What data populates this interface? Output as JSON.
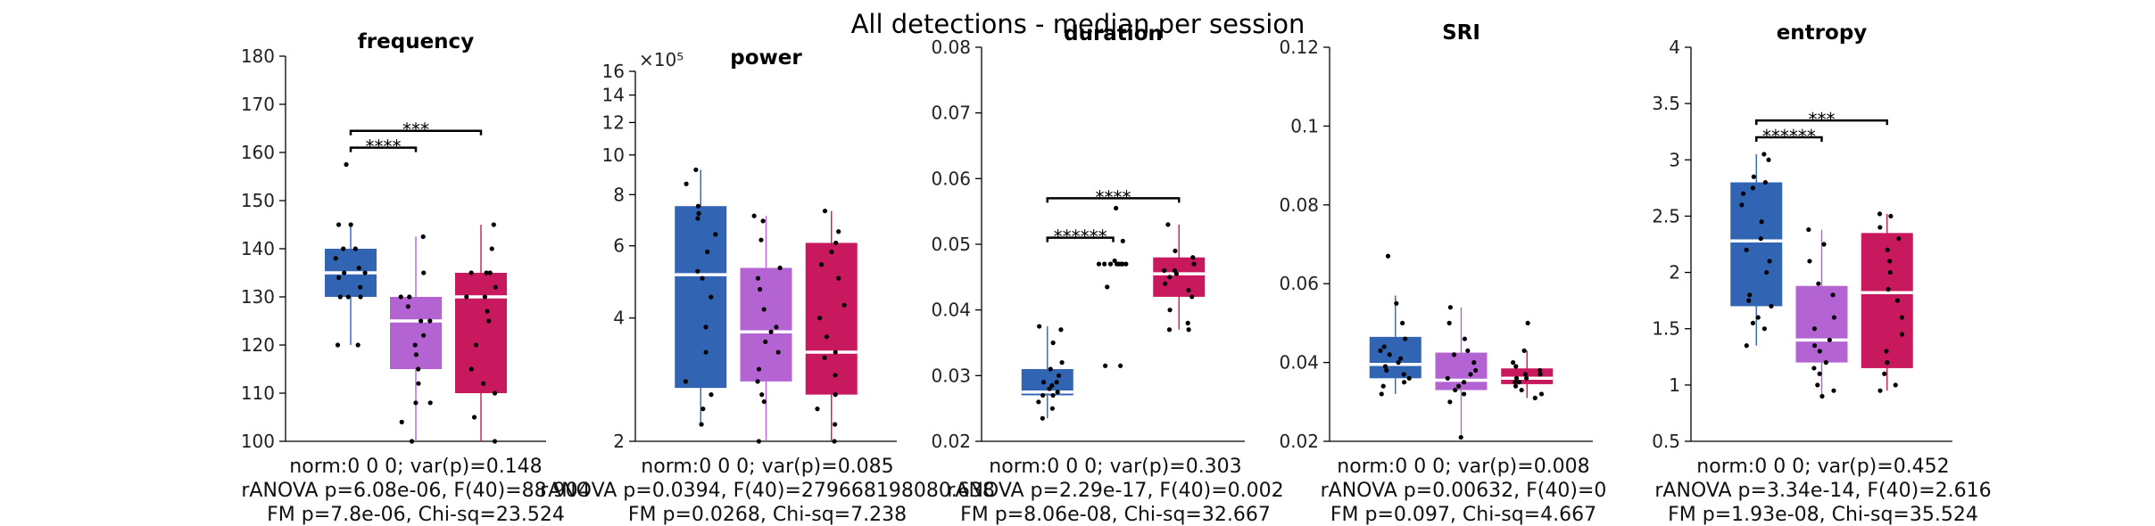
{
  "suptitle": "All detections - median per session",
  "colors": {
    "blue": "#3264b4",
    "violet": "#b464d2",
    "magenta": "#c8195f"
  },
  "chart_data": [
    {
      "type": "box",
      "title": "frequency",
      "scale": "linear",
      "ylim": [
        100,
        180
      ],
      "yticks": [
        100,
        110,
        120,
        130,
        140,
        150,
        160,
        170,
        180
      ],
      "ytick_labels": [
        "100",
        "110",
        "120",
        "130",
        "140",
        "150",
        "160",
        "170",
        "180"
      ],
      "exponent_label": "",
      "groups": [
        {
          "color": "#3264b4",
          "q1": 130,
          "median": 135,
          "q3": 140,
          "whisker_low": 120,
          "whisker_high": 145,
          "points": [
            120,
            120,
            130,
            130,
            130,
            132,
            134,
            135,
            135,
            136,
            138,
            140,
            140,
            145,
            145,
            157.5
          ]
        },
        {
          "color": "#b464d2",
          "q1": 115,
          "median": 125,
          "q3": 130,
          "whisker_low": 100,
          "whisker_high": 142.5,
          "points": [
            100,
            104,
            108,
            108,
            112,
            115,
            118,
            120,
            122,
            125,
            125,
            128,
            130,
            130,
            135,
            142.5
          ]
        },
        {
          "color": "#c8195f",
          "q1": 110,
          "median": 130,
          "q3": 135,
          "whisker_low": 100,
          "whisker_high": 145,
          "points": [
            100,
            105,
            110,
            112,
            115,
            120,
            125,
            127,
            130,
            130,
            132,
            135,
            135,
            135,
            140,
            145
          ]
        }
      ],
      "brackets": [
        {
          "from": 0,
          "to": 1,
          "y": 161,
          "label": "****"
        },
        {
          "from": 0,
          "to": 2,
          "y": 164.5,
          "label": "***"
        }
      ],
      "stats": [
        "norm:0  0  0; var(p)=0.148",
        "rANOVA p=6.08e-06, F(40)=88.904",
        "FM p=7.8e-06, Chi-sq=23.524"
      ]
    },
    {
      "type": "box",
      "title": "power",
      "scale": "log",
      "ylim": [
        2,
        16
      ],
      "yticks": [
        2,
        4,
        6,
        8,
        10,
        12,
        14,
        16
      ],
      "ytick_labels": [
        "2",
        "4",
        "6",
        "8",
        "10",
        "12",
        "14",
        "16"
      ],
      "exponent_label": "×10⁵",
      "groups": [
        {
          "color": "#3264b4",
          "q1": 2.7,
          "median": 5.1,
          "q3": 7.5,
          "whisker_low": 2.2,
          "whisker_high": 9.2,
          "points": [
            2.2,
            2.4,
            2.6,
            2.8,
            3.3,
            3.8,
            4.5,
            5.0,
            5.2,
            5.8,
            6.4,
            7.0,
            7.2,
            7.5,
            8.5,
            9.2
          ]
        },
        {
          "color": "#b464d2",
          "q1": 2.8,
          "median": 3.7,
          "q3": 5.3,
          "whisker_low": 2.0,
          "whisker_high": 7.1,
          "points": [
            2.0,
            2.5,
            2.6,
            2.8,
            3.0,
            3.3,
            3.5,
            3.7,
            3.8,
            4.2,
            4.7,
            5.0,
            5.3,
            6.2,
            6.9,
            7.1
          ]
        },
        {
          "color": "#c8195f",
          "q1": 2.6,
          "median": 3.3,
          "q3": 6.1,
          "whisker_low": 2.0,
          "whisker_high": 7.3,
          "points": [
            2.0,
            2.2,
            2.4,
            2.6,
            2.9,
            3.2,
            3.3,
            3.6,
            4.0,
            4.3,
            5.0,
            5.4,
            5.8,
            6.1,
            6.5,
            7.3
          ]
        }
      ],
      "brackets": [],
      "stats": [
        "norm:0  0  0; var(p)=0.085",
        "rANOVA p=0.0394, F(40)=279668198080.638",
        "FM p=0.0268, Chi-sq=7.238"
      ]
    },
    {
      "type": "box",
      "title": "duration",
      "scale": "linear",
      "ylim": [
        0.02,
        0.08
      ],
      "yticks": [
        0.02,
        0.03,
        0.04,
        0.05,
        0.06,
        0.07,
        0.08
      ],
      "ytick_labels": [
        "0.02",
        "0.03",
        "0.04",
        "0.05",
        "0.06",
        "0.07",
        "0.08"
      ],
      "exponent_label": "",
      "groups": [
        {
          "color": "#3264b4",
          "q1": 0.027,
          "median": 0.0275,
          "q3": 0.031,
          "whisker_low": 0.0235,
          "whisker_high": 0.0375,
          "points": [
            0.0235,
            0.025,
            0.026,
            0.027,
            0.027,
            0.0275,
            0.028,
            0.0285,
            0.029,
            0.029,
            0.03,
            0.031,
            0.032,
            0.035,
            0.037,
            0.0375
          ]
        },
        {
          "color": "#b464d2",
          "q1": 0.047,
          "median": 0.047,
          "q3": 0.047,
          "whisker_low": 0.047,
          "whisker_high": 0.0475,
          "points": [
            0.0315,
            0.0315,
            0.0435,
            0.047,
            0.047,
            0.047,
            0.047,
            0.047,
            0.047,
            0.047,
            0.047,
            0.0475,
            0.0505,
            0.0555
          ]
        },
        {
          "color": "#c8195f",
          "q1": 0.042,
          "median": 0.0455,
          "q3": 0.048,
          "whisker_low": 0.037,
          "whisker_high": 0.053,
          "points": [
            0.037,
            0.037,
            0.038,
            0.04,
            0.042,
            0.043,
            0.044,
            0.045,
            0.0455,
            0.046,
            0.046,
            0.047,
            0.048,
            0.049,
            0.053
          ]
        }
      ],
      "brackets": [
        {
          "from": 0,
          "to": 1,
          "y": 0.051,
          "label": "******"
        },
        {
          "from": 0,
          "to": 2,
          "y": 0.057,
          "label": "****"
        }
      ],
      "stats": [
        "norm:0  0  0; var(p)=0.303",
        "rANOVA p=2.29e-17, F(40)=0.002",
        "FM p=8.06e-08, Chi-sq=32.667"
      ]
    },
    {
      "type": "box",
      "title": "SRI",
      "scale": "linear",
      "ylim": [
        0.02,
        0.12
      ],
      "yticks": [
        0.02,
        0.04,
        0.06,
        0.08,
        0.1,
        0.12
      ],
      "ytick_labels": [
        "0.02",
        "0.04",
        "0.06",
        "0.08",
        "0.1",
        "0.12"
      ],
      "exponent_label": "",
      "groups": [
        {
          "color": "#3264b4",
          "q1": 0.036,
          "median": 0.0395,
          "q3": 0.0465,
          "whisker_low": 0.032,
          "whisker_high": 0.057,
          "points": [
            0.032,
            0.034,
            0.035,
            0.036,
            0.037,
            0.038,
            0.039,
            0.04,
            0.041,
            0.042,
            0.043,
            0.044,
            0.046,
            0.05,
            0.055,
            0.067
          ]
        },
        {
          "color": "#b464d2",
          "q1": 0.033,
          "median": 0.0355,
          "q3": 0.0425,
          "whisker_low": 0.021,
          "whisker_high": 0.054,
          "points": [
            0.021,
            0.03,
            0.032,
            0.033,
            0.034,
            0.035,
            0.036,
            0.037,
            0.038,
            0.04,
            0.042,
            0.043,
            0.046,
            0.05,
            0.054
          ]
        },
        {
          "color": "#c8195f",
          "q1": 0.0345,
          "median": 0.036,
          "q3": 0.0385,
          "whisker_low": 0.031,
          "whisker_high": 0.043,
          "points": [
            0.031,
            0.032,
            0.033,
            0.034,
            0.035,
            0.035,
            0.036,
            0.036,
            0.037,
            0.037,
            0.038,
            0.039,
            0.04,
            0.043,
            0.05
          ]
        }
      ],
      "brackets": [],
      "stats": [
        "norm:0  0  0; var(p)=0.008",
        "rANOVA p=0.00632, F(40)=0",
        "FM p=0.097, Chi-sq=4.667"
      ]
    },
    {
      "type": "box",
      "title": "entropy",
      "scale": "linear",
      "ylim": [
        0.5,
        4
      ],
      "yticks": [
        0.5,
        1,
        1.5,
        2,
        2.5,
        3,
        3.5,
        4
      ],
      "ytick_labels": [
        "0.5",
        "1",
        "1.5",
        "2",
        "2.5",
        "3",
        "3.5",
        "4"
      ],
      "exponent_label": "",
      "groups": [
        {
          "color": "#3264b4",
          "q1": 1.7,
          "median": 2.28,
          "q3": 2.8,
          "whisker_low": 1.35,
          "whisker_high": 3.05,
          "points": [
            1.35,
            1.5,
            1.55,
            1.6,
            1.7,
            1.75,
            1.8,
            2.0,
            2.1,
            2.2,
            2.3,
            2.45,
            2.6,
            2.7,
            2.75,
            2.8,
            2.85,
            3.0,
            3.05
          ]
        },
        {
          "color": "#b464d2",
          "q1": 1.2,
          "median": 1.4,
          "q3": 1.88,
          "whisker_low": 0.9,
          "whisker_high": 2.38,
          "points": [
            0.9,
            0.95,
            1.0,
            1.1,
            1.15,
            1.2,
            1.3,
            1.35,
            1.4,
            1.5,
            1.6,
            1.8,
            1.9,
            2.1,
            2.25,
            2.38
          ]
        },
        {
          "color": "#c8195f",
          "q1": 1.15,
          "median": 1.82,
          "q3": 2.35,
          "whisker_low": 0.95,
          "whisker_high": 2.52,
          "points": [
            0.95,
            1.0,
            1.1,
            1.2,
            1.3,
            1.45,
            1.6,
            1.75,
            1.85,
            2.0,
            2.1,
            2.2,
            2.3,
            2.4,
            2.5,
            2.52
          ]
        }
      ],
      "brackets": [
        {
          "from": 0,
          "to": 1,
          "y": 3.2,
          "label": "******"
        },
        {
          "from": 0,
          "to": 2,
          "y": 3.35,
          "label": "***"
        }
      ],
      "stats": [
        "norm:0  0  0; var(p)=0.452",
        "rANOVA p=3.34e-14, F(40)=2.616",
        "FM p=1.93e-08, Chi-sq=35.524"
      ]
    }
  ]
}
